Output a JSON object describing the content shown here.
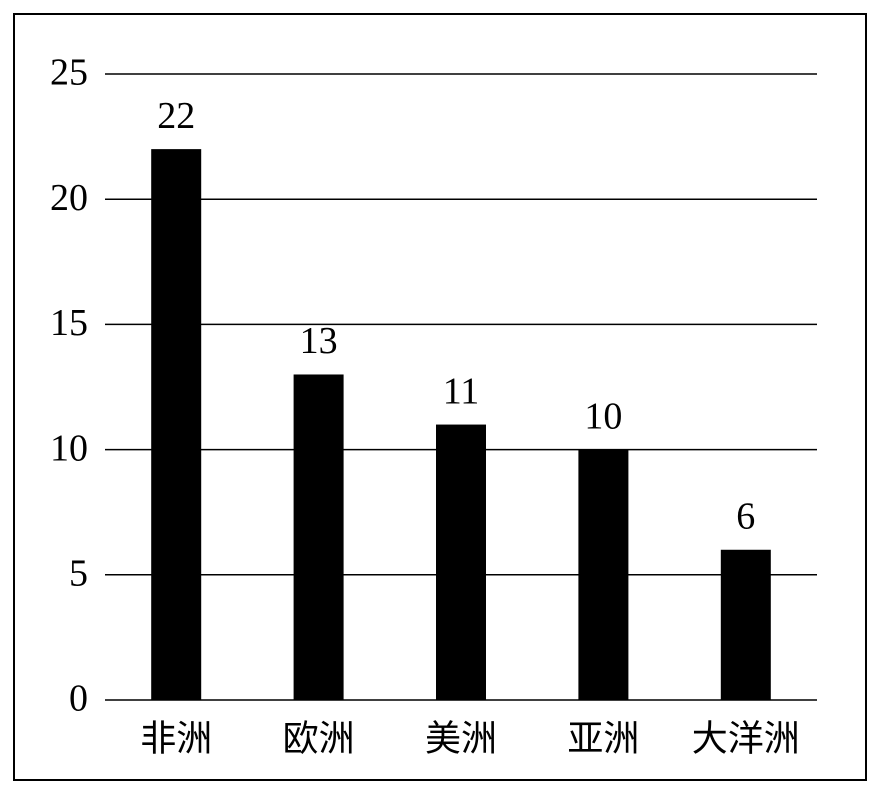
{
  "chart_data": {
    "type": "bar",
    "categories": [
      "非洲",
      "欧洲",
      "美洲",
      "亚洲",
      "大洋洲"
    ],
    "values": [
      22,
      13,
      11,
      10,
      6
    ],
    "color": "#000000",
    "ylim": [
      0,
      25
    ],
    "yticks": [
      0,
      5,
      10,
      15,
      20,
      25
    ],
    "grid": true
  }
}
